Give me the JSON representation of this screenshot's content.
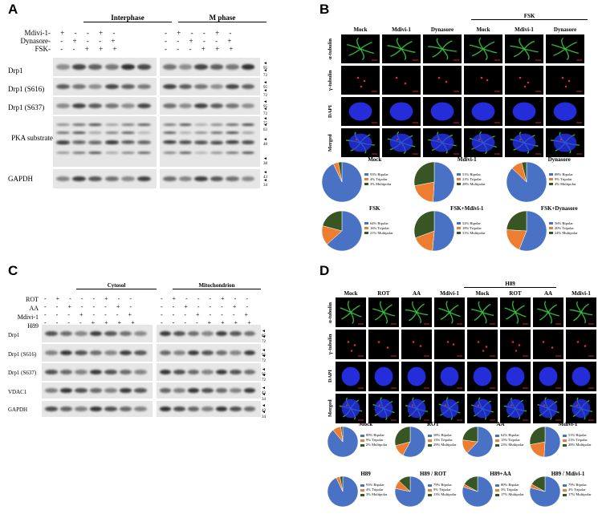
{
  "colors": {
    "bipolar": "#4a72c4",
    "tripolar": "#ed7d31",
    "multipolar": "#375623",
    "tubulin": "#35c83a",
    "gamma": "#e0302c",
    "dapi": "#2a35ff"
  },
  "A": {
    "letter": "A",
    "group_headers": [
      "Interphase",
      "M phase"
    ],
    "conditions": [
      {
        "label": "Mdivi-1",
        "signs": "- + - - + -"
      },
      {
        "label": "Dynasore",
        "signs": "- - + - - +"
      },
      {
        "label": "FSK",
        "signs": "- - - + + +"
      }
    ],
    "blots": [
      {
        "label": "Drp1",
        "mw": [
          "95",
          "72"
        ]
      },
      {
        "label": "Drp1 (S616)",
        "mw": [
          "95",
          "72"
        ]
      },
      {
        "label": "Drp1 (S637)",
        "mw": [
          "95",
          "72"
        ]
      },
      {
        "label": "PKA substrate",
        "mw": [
          "75",
          "63",
          "48",
          "38"
        ]
      },
      {
        "label": "GAPDH",
        "mw": [
          "43",
          "34"
        ]
      }
    ]
  },
  "B": {
    "letter": "B",
    "fsk_header": "FSK",
    "columns": [
      "Mock",
      "Mdivi-1",
      "Dynasore",
      "Mock",
      "Mdivi-1",
      "Dynasore"
    ],
    "rows": [
      "α-tubulin",
      "γ-tubulin",
      "DAPI",
      "Merged"
    ],
    "pies": [
      {
        "title": "Mock",
        "legend": [
          "93% Bipolar",
          "4% Tripolar",
          "3% Multipolar"
        ],
        "values": [
          93,
          4,
          3
        ]
      },
      {
        "title": "Mdivi-1",
        "legend": [
          "51% Bipolar",
          "21% Tripolar",
          "28% Multipolar"
        ],
        "values": [
          51,
          21,
          28
        ]
      },
      {
        "title": "Dynasore",
        "legend": [
          "88% Bipolar",
          "9% Tripolar",
          "4% Multipolar"
        ],
        "values": [
          88,
          9,
          4
        ]
      },
      {
        "title": "FSK",
        "legend": [
          "64% Bipolar",
          "16% Tripolar",
          "21% Multipolar"
        ],
        "values": [
          64,
          16,
          21
        ]
      },
      {
        "title": "FSK+Mdivi-1",
        "legend": [
          "52% Bipolar",
          "18% Tripolar",
          "31% Multipolar"
        ],
        "values": [
          52,
          18,
          31
        ]
      },
      {
        "title": "FSK+Dynasore",
        "legend": [
          "56% Bipolar",
          "20% Tripolar",
          "24% Multipolar"
        ],
        "values": [
          56,
          20,
          24
        ]
      }
    ]
  },
  "C": {
    "letter": "C",
    "group_headers": [
      "Cytosol",
      "Mitochondrion"
    ],
    "conditions": [
      {
        "label": "ROT",
        "signs": "- + - - - + - -"
      },
      {
        "label": "AA",
        "signs": "- - + - - - + -"
      },
      {
        "label": "Mdivi-1",
        "signs": "- - - + - - - +"
      },
      {
        "label": "H89",
        "signs": "- - - - + + + +"
      }
    ],
    "blots": [
      {
        "label": "Drp1",
        "mw": [
          "85",
          "72"
        ]
      },
      {
        "label": "Drp1 (S616)",
        "mw": [
          "95",
          "72"
        ]
      },
      {
        "label": "Drp1 (S637)",
        "mw": [
          "95",
          "72"
        ]
      },
      {
        "label": "VDAC1",
        "mw": [
          "43",
          "34"
        ]
      },
      {
        "label": "GAPDH",
        "mw": [
          "43",
          "34"
        ]
      }
    ]
  },
  "D": {
    "letter": "D",
    "h89_header": "H89",
    "columns": [
      "Mock",
      "ROT",
      "AA",
      "Mdivi-1",
      "Mock",
      "ROT",
      "AA",
      "Mdivi-1"
    ],
    "rows": [
      "α-tubulin",
      "γ-tubulin",
      "DAPI",
      "Merged"
    ],
    "pies": [
      {
        "title": "Mock",
        "legend": [
          "89% Bipolar",
          "9% Tripolar",
          "2% Multipolar"
        ],
        "values": [
          89,
          9,
          2
        ]
      },
      {
        "title": "ROT",
        "legend": [
          "58% Bipolar",
          "13% Tripolar",
          "29% Multipolar"
        ],
        "values": [
          58,
          13,
          29
        ]
      },
      {
        "title": "AA",
        "legend": [
          "62% Bipolar",
          "15% Tripolar",
          "23% Multipolar"
        ],
        "values": [
          62,
          15,
          23
        ]
      },
      {
        "title": "Mdivi-1",
        "legend": [
          "51% Bipolar",
          "21% Tripolar",
          "28% Multipolar"
        ],
        "values": [
          51,
          21,
          28
        ]
      },
      {
        "title": "H89",
        "legend": [
          "93% Bipolar",
          "4% Tripolar",
          "3% Multipolar"
        ],
        "values": [
          93,
          4,
          3
        ]
      },
      {
        "title": "H89 / ROT",
        "legend": [
          "79% Bipolar",
          "9% Tripolar",
          "13% Multipolar"
        ],
        "values": [
          79,
          9,
          13
        ]
      },
      {
        "title": "H89+AA",
        "legend": [
          "80% Bipolar",
          "3% Tripolar",
          "17% Multipolar"
        ],
        "values": [
          80,
          3,
          17
        ]
      },
      {
        "title": "H89 / Mdivi-1",
        "legend": [
          "79% Bipolar",
          "4% Tripolar",
          "17% Multipolar"
        ],
        "values": [
          79,
          4,
          17
        ]
      }
    ]
  }
}
